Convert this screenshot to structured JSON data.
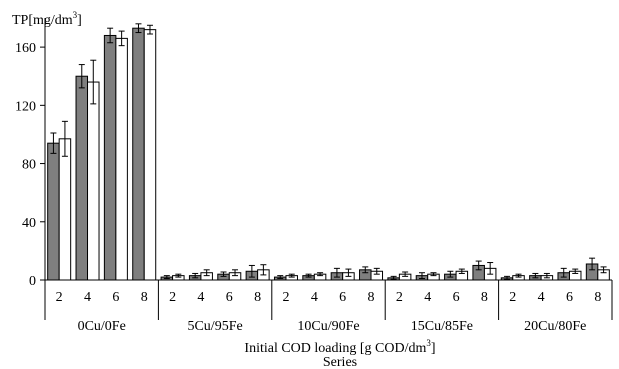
{
  "chart_data": {
    "type": "bar",
    "ylabel_prefix": "TP[mg/dm",
    "ylabel_sup": "3",
    "ylabel_suffix": "]",
    "xlabel_prefix": "Initial COD loading [g COD/dm",
    "xlabel_sup": "3",
    "xlabel_suffix": "]",
    "xlabel2": "Series",
    "ylim": [
      0,
      180
    ],
    "yticks": [
      0,
      40,
      80,
      120,
      160
    ],
    "legend": "none",
    "grid": false,
    "groups": [
      {
        "name": "0Cu/0Fe",
        "categories": [
          "2",
          "4",
          "6",
          "8"
        ],
        "series": [
          {
            "values": [
              94,
              140,
              168,
              173
            ],
            "errors": [
              7,
              8,
              5,
              3
            ]
          },
          {
            "values": [
              97,
              136,
              166,
              172
            ],
            "errors": [
              12,
              15,
              5,
              3
            ]
          }
        ]
      },
      {
        "name": "5Cu/95Fe",
        "categories": [
          "2",
          "4",
          "6",
          "8"
        ],
        "series": [
          {
            "values": [
              2,
              3,
              4,
              6
            ],
            "errors": [
              1,
              1.5,
              1.5,
              4
            ]
          },
          {
            "values": [
              3,
              5,
              5,
              7
            ],
            "errors": [
              1,
              2,
              2,
              3.5
            ]
          }
        ]
      },
      {
        "name": "10Cu/90Fe",
        "categories": [
          "2",
          "4",
          "6",
          "8"
        ],
        "series": [
          {
            "values": [
              2,
              3,
              5,
              7
            ],
            "errors": [
              1,
              1,
              3,
              2
            ]
          },
          {
            "values": [
              3,
              4,
              5,
              6
            ],
            "errors": [
              1,
              1,
              2.5,
              2
            ]
          }
        ]
      },
      {
        "name": "15Cu/85Fe",
        "categories": [
          "2",
          "4",
          "6",
          "8"
        ],
        "series": [
          {
            "values": [
              1.5,
              3,
              4,
              10
            ],
            "errors": [
              1,
              2,
              2,
              3
            ]
          },
          {
            "values": [
              4,
              4,
              6,
              8
            ],
            "errors": [
              1.5,
              1,
              1.5,
              4
            ]
          }
        ]
      },
      {
        "name": "20Cu/80Fe",
        "categories": [
          "2",
          "4",
          "6",
          "8"
        ],
        "series": [
          {
            "values": [
              1.5,
              3,
              5,
              11
            ],
            "errors": [
              1,
              1.5,
              3,
              4
            ]
          },
          {
            "values": [
              3,
              3,
              6,
              7
            ],
            "errors": [
              1,
              1.5,
              1.5,
              2
            ]
          }
        ]
      }
    ],
    "colors": {
      "series1": "#7f7f7f",
      "series2": "#ffffff",
      "stroke": "#000000"
    }
  }
}
